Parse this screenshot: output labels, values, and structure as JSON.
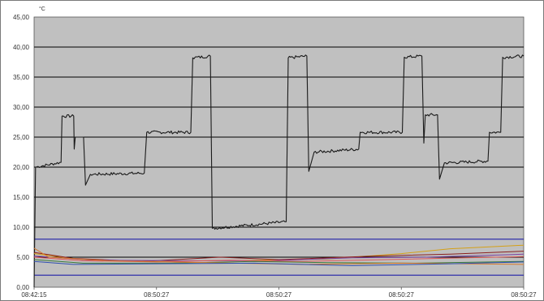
{
  "chart_data": {
    "type": "line",
    "title": "",
    "xlabel": "",
    "ylabel": "°C",
    "ylim": [
      0,
      45
    ],
    "y_ticks": [
      "0,00",
      "5,00",
      "10,00",
      "15,00",
      "20,00",
      "25,00",
      "30,00",
      "35,00",
      "40,00",
      "45,00"
    ],
    "x_ticks": [
      "08:42:15",
      "08:50:27",
      "08:50:27",
      "08:50:27",
      "08:50:27"
    ],
    "xlim": [
      0,
      100
    ],
    "grid": true,
    "background": "#c0c0c0",
    "gridline_color": "#000000",
    "limit_lines": [
      {
        "y": 8,
        "color": "#1f1fa8"
      },
      {
        "y": 2,
        "color": "#1f1fa8"
      }
    ],
    "series": [
      {
        "color": "#1a1a1a",
        "noise": 0.25,
        "points": [
          [
            0,
            0
          ],
          [
            0.3,
            20
          ],
          [
            5.5,
            20.8
          ],
          [
            5.7,
            28.5
          ],
          [
            8.1,
            28.5
          ],
          [
            8.2,
            23
          ],
          [
            8.4,
            25
          ],
          [
            10.1,
            25
          ],
          [
            10.5,
            17
          ],
          [
            11.5,
            18.8
          ],
          [
            22.5,
            19
          ],
          [
            23,
            25.8
          ],
          [
            32,
            25.8
          ],
          [
            32.4,
            38.2
          ],
          [
            36,
            38.5
          ],
          [
            36.4,
            9.8
          ],
          [
            51.5,
            10.9
          ],
          [
            51.9,
            38.2
          ],
          [
            55.7,
            38.5
          ],
          [
            56.1,
            19.3
          ],
          [
            57.2,
            22.5
          ],
          [
            66.3,
            23
          ],
          [
            66.6,
            25.8
          ],
          [
            75.2,
            25.8
          ],
          [
            75.6,
            38.3
          ],
          [
            79.2,
            38.5
          ],
          [
            79.6,
            24
          ],
          [
            79.9,
            28.7
          ],
          [
            82.4,
            28.7
          ],
          [
            82.8,
            18
          ],
          [
            83.8,
            20.7
          ],
          [
            92.7,
            21
          ],
          [
            93,
            25.8
          ],
          [
            95.3,
            25.8
          ],
          [
            95.7,
            38.3
          ],
          [
            100,
            38.5
          ]
        ]
      },
      {
        "color": "#d4a017",
        "noise": 0,
        "points": [
          [
            0,
            5.6
          ],
          [
            10,
            4.6
          ],
          [
            25,
            4.3
          ],
          [
            45,
            4.5
          ],
          [
            60,
            4.7
          ],
          [
            75,
            5.6
          ],
          [
            85,
            6.4
          ],
          [
            100,
            7.0
          ]
        ]
      },
      {
        "color": "#8a1f1f",
        "noise": 0,
        "points": [
          [
            0,
            5.8
          ],
          [
            8,
            4.8
          ],
          [
            22,
            4.3
          ],
          [
            38,
            5.0
          ],
          [
            50,
            4.6
          ],
          [
            70,
            5.2
          ],
          [
            85,
            5.5
          ],
          [
            100,
            6.0
          ]
        ]
      },
      {
        "color": "#7b3fa0",
        "noise": 0,
        "points": [
          [
            0,
            5.2
          ],
          [
            12,
            4.5
          ],
          [
            30,
            4.4
          ],
          [
            48,
            4.4
          ],
          [
            65,
            4.9
          ],
          [
            80,
            5.0
          ],
          [
            100,
            5.5
          ]
        ]
      },
      {
        "color": "#e05a5a",
        "noise": 0,
        "points": [
          [
            0,
            5.0
          ],
          [
            10,
            4.4
          ],
          [
            25,
            4.2
          ],
          [
            40,
            4.5
          ],
          [
            55,
            4.3
          ],
          [
            72,
            4.6
          ],
          [
            88,
            4.9
          ],
          [
            100,
            5.1
          ]
        ]
      },
      {
        "color": "#3a7a3a",
        "noise": 0,
        "points": [
          [
            0,
            4.6
          ],
          [
            10,
            4.0
          ],
          [
            28,
            4.0
          ],
          [
            45,
            4.3
          ],
          [
            60,
            4.1
          ],
          [
            78,
            4.0
          ],
          [
            100,
            4.3
          ]
        ]
      },
      {
        "color": "#d97a2b",
        "noise": 0,
        "points": [
          [
            0,
            6.5
          ],
          [
            3,
            5.0
          ],
          [
            15,
            4.4
          ],
          [
            35,
            4.1
          ],
          [
            55,
            3.8
          ],
          [
            75,
            4.0
          ],
          [
            100,
            3.8
          ]
        ]
      },
      {
        "color": "#2f4fb0",
        "noise": 0,
        "points": [
          [
            0,
            4.3
          ],
          [
            8,
            3.8
          ],
          [
            25,
            3.9
          ],
          [
            45,
            4.0
          ],
          [
            65,
            3.6
          ],
          [
            85,
            3.9
          ],
          [
            100,
            4.2
          ]
        ]
      }
    ]
  }
}
